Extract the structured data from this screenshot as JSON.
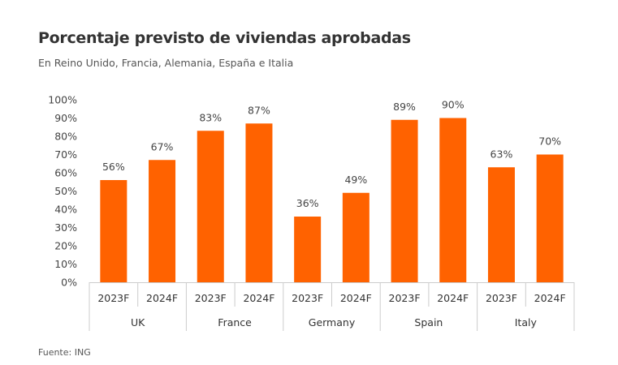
{
  "header": {
    "title": "Porcentaje previsto de viviendas aprobadas",
    "subtitle": "En Reino Unido, Francia, Alemania, España e Italia"
  },
  "footer": {
    "source": "Fuente: ING"
  },
  "colors": {
    "bar": "#FF6200",
    "axis": "#CCCCCC",
    "text": "#333333"
  },
  "chart_data": {
    "type": "bar",
    "title": "Porcentaje previsto de viviendas aprobadas",
    "subtitle": "En Reino Unido, Francia, Alemania, España e Italia",
    "xlabel": "",
    "ylabel": "",
    "ylim": [
      0,
      100
    ],
    "y_ticks": [
      "0%",
      "10%",
      "20%",
      "30%",
      "40%",
      "50%",
      "60%",
      "70%",
      "80%",
      "90%",
      "100%"
    ],
    "grid": false,
    "legend": "none",
    "groups": [
      "UK",
      "France",
      "Germany",
      "Spain",
      "Italy"
    ],
    "categories": [
      "2023F",
      "2024F",
      "2023F",
      "2024F",
      "2023F",
      "2024F",
      "2023F",
      "2024F",
      "2023F",
      "2024F"
    ],
    "values": [
      56,
      67,
      83,
      87,
      36,
      49,
      89,
      90,
      63,
      70
    ],
    "data_labels": [
      "56%",
      "67%",
      "83%",
      "87%",
      "36%",
      "49%",
      "89%",
      "90%",
      "63%",
      "70%"
    ],
    "source": "Fuente: ING"
  }
}
